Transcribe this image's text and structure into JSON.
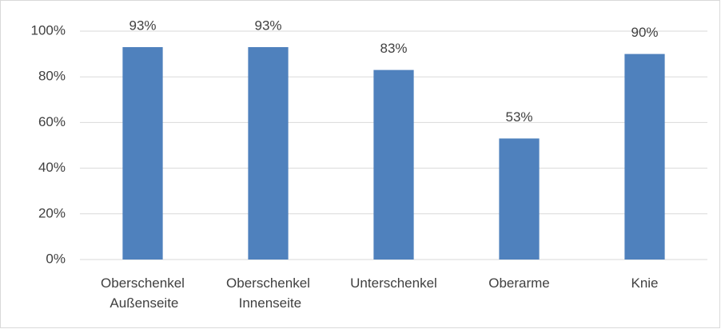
{
  "chart_data": {
    "type": "bar",
    "categories": [
      "Oberschenkel Außenseite",
      "Oberschenkel Innenseite",
      "Unterschenkel",
      "Oberarme",
      "Knie"
    ],
    "values": [
      93,
      93,
      83,
      53,
      90
    ],
    "value_labels": [
      "93%",
      "93%",
      "83%",
      "53%",
      "90%"
    ],
    "color": "#4f81bd",
    "ylim": [
      0,
      100
    ],
    "yticks": [
      {
        "value": 0,
        "label": "0%"
      },
      {
        "value": 20,
        "label": "20%"
      },
      {
        "value": 40,
        "label": "40%"
      },
      {
        "value": 60,
        "label": "60%"
      },
      {
        "value": 80,
        "label": "80%"
      },
      {
        "value": 100,
        "label": "100%"
      }
    ],
    "grid": true
  }
}
